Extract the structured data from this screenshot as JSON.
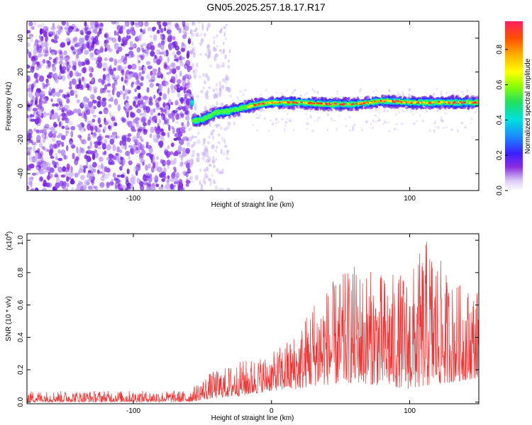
{
  "title": "GN05.2025.257.18.17.R17",
  "chart_data": [
    {
      "type": "heatmap",
      "xlabel": "Height of straight line (km)",
      "ylabel": "Frequency (Hz)",
      "xlim": [
        -177,
        150
      ],
      "ylim": [
        -50,
        50
      ],
      "xticks": [
        "-100",
        "0",
        "100"
      ],
      "yticks": [
        "40",
        "20",
        "0",
        "-20",
        "-40"
      ],
      "colorbar": {
        "label": "Normalized spectral amplitude",
        "range": [
          0.0,
          0.96
        ],
        "ticks": [
          "0.0",
          "0.2",
          "0.4",
          "0.6",
          "0.8"
        ]
      },
      "ridge": [
        {
          "x": -57,
          "y": -9
        },
        {
          "x": -50,
          "y": -8
        },
        {
          "x": -40,
          "y": -4
        },
        {
          "x": -30,
          "y": -3
        },
        {
          "x": -20,
          "y": -1
        },
        {
          "x": -10,
          "y": 1
        },
        {
          "x": 0,
          "y": 2
        },
        {
          "x": 20,
          "y": 2
        },
        {
          "x": 40,
          "y": 1
        },
        {
          "x": 60,
          "y": 1
        },
        {
          "x": 80,
          "y": 3
        },
        {
          "x": 100,
          "y": 2
        },
        {
          "x": 150,
          "y": 2
        }
      ],
      "noise_zone_end_x": -60
    },
    {
      "type": "line",
      "xlabel": "Height of straight line (km)",
      "ylabel": "SNR (10 * v/v)",
      "y_multiplier": "(x10",
      "y_multiplier_exp": "4",
      "y_multiplier_close": ")",
      "xlim": [
        -177,
        150
      ],
      "ylim": [
        -0.01,
        1.04
      ],
      "xticks": [
        "-100",
        "0",
        "100"
      ],
      "yticks": [
        "0.0",
        "0.2",
        "0.4",
        "0.6",
        "0.8",
        "1.0"
      ],
      "series_color": "#ee3333",
      "envelope": [
        {
          "x": -177,
          "low": 0.0,
          "high": 0.07
        },
        {
          "x": -60,
          "low": 0.0,
          "high": 0.07
        },
        {
          "x": -45,
          "low": 0.02,
          "high": 0.18
        },
        {
          "x": -20,
          "low": 0.04,
          "high": 0.26
        },
        {
          "x": 0,
          "low": 0.07,
          "high": 0.3
        },
        {
          "x": 20,
          "low": 0.08,
          "high": 0.45
        },
        {
          "x": 30,
          "low": 0.1,
          "high": 0.65
        },
        {
          "x": 60,
          "low": 0.12,
          "high": 0.85
        },
        {
          "x": 80,
          "low": 0.1,
          "high": 0.8
        },
        {
          "x": 100,
          "low": 0.08,
          "high": 0.8
        },
        {
          "x": 113,
          "low": 0.1,
          "high": 1.03
        },
        {
          "x": 130,
          "low": 0.12,
          "high": 0.75
        },
        {
          "x": 150,
          "low": 0.15,
          "high": 0.7
        }
      ]
    }
  ]
}
